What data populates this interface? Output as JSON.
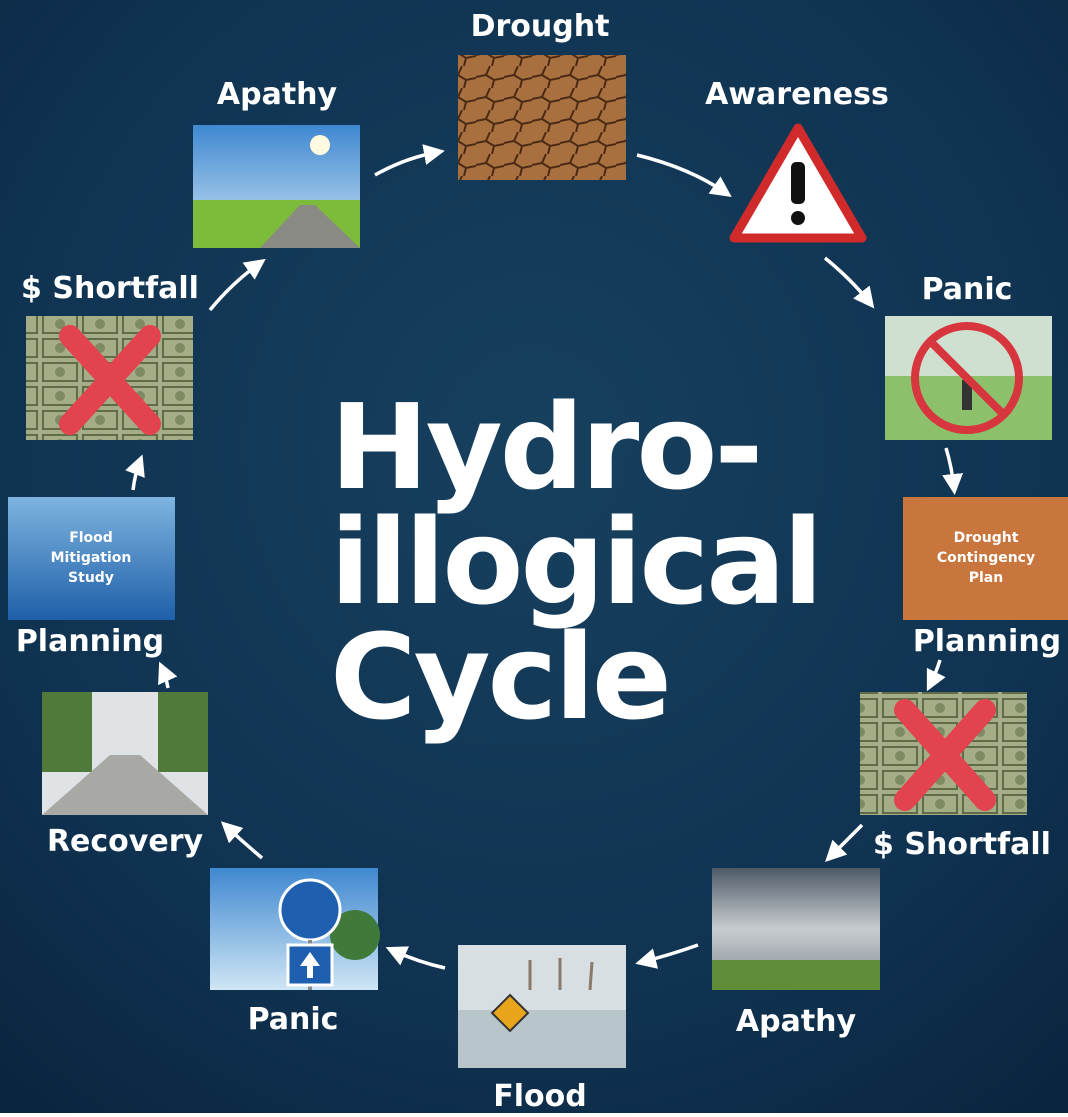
{
  "title": [
    "Hydro-",
    "illogical",
    "Cycle"
  ],
  "nodes": [
    {
      "label": "Drought"
    },
    {
      "label": "Awareness"
    },
    {
      "label": "Panic"
    },
    {
      "label": "Planning",
      "image_text": [
        "Drought",
        "Contingency",
        "Plan"
      ]
    },
    {
      "label": "$ Shortfall"
    },
    {
      "label": "Apathy"
    },
    {
      "label": "Flood"
    },
    {
      "label": "Panic"
    },
    {
      "label": "Recovery"
    },
    {
      "label": "Planning",
      "image_text": [
        "Flood",
        "Mitigation",
        "Study"
      ]
    },
    {
      "label": "$ Shortfall"
    },
    {
      "label": "Apathy"
    }
  ]
}
